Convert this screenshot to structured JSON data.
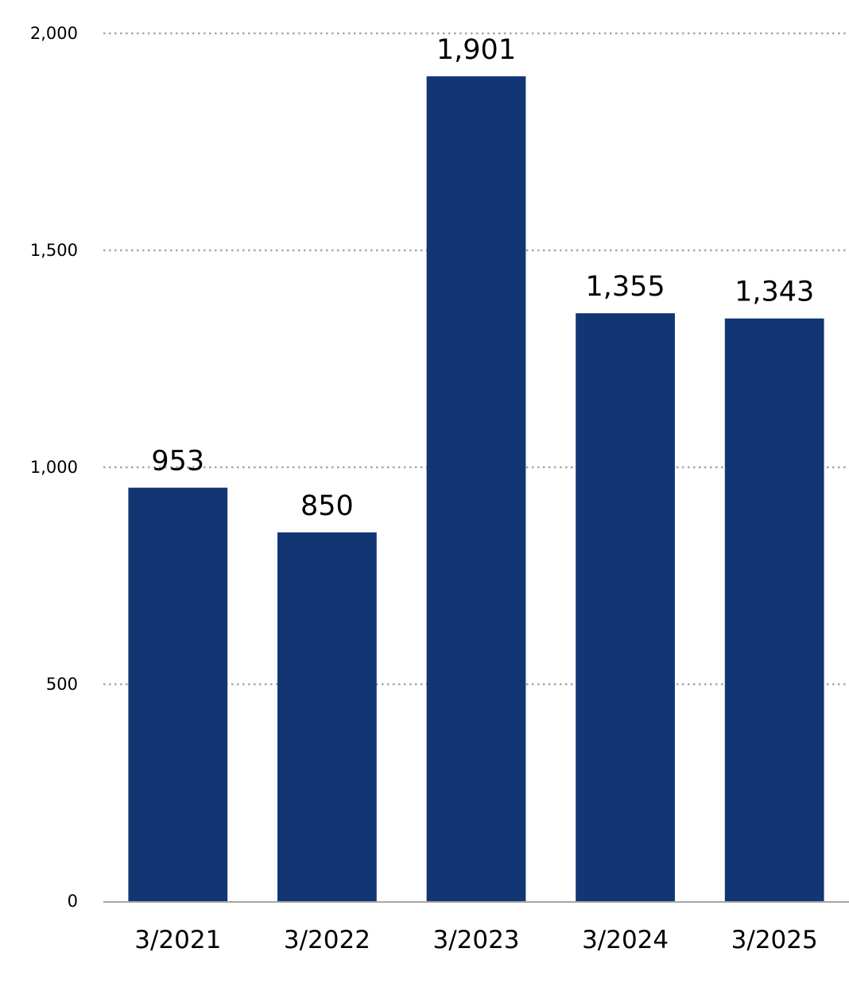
{
  "chart_data": {
    "type": "bar",
    "categories": [
      "3/2021",
      "3/2022",
      "3/2023",
      "3/2024",
      "3/2025"
    ],
    "values": [
      953,
      850,
      1901,
      1355,
      1343
    ],
    "value_labels": [
      "953",
      "850",
      "1,901",
      "1,355",
      "1,343"
    ],
    "ylim": [
      0,
      2000
    ],
    "yticks": [
      0,
      500,
      1000,
      1500,
      2000
    ],
    "ytick_labels": [
      "0",
      "500",
      "1,000",
      "1,500",
      "2,000"
    ],
    "grid": true,
    "grid_style": "dotted",
    "legend": "none",
    "colors": {
      "bar": "#123673",
      "grid": "#a6a6a6",
      "axis": "#a6a6a6",
      "text": "#000000"
    }
  }
}
